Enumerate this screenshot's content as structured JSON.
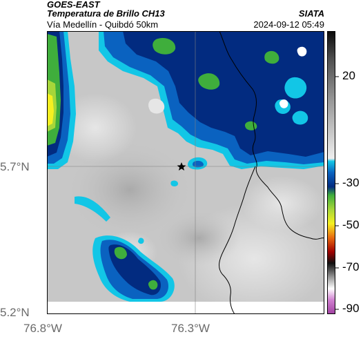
{
  "header": {
    "satellite": "GOES-EAST",
    "product": "Temperatura de Brillo CH13",
    "organization": "SIATA",
    "route": "Vía Medellín - Quibdó 50km",
    "datetime": "2024-09-12 05:49"
  },
  "map": {
    "latitude_labels": [
      "5.7°N",
      "5.2°N"
    ],
    "longitude_labels": [
      "76.8°W",
      "76.3°W"
    ],
    "marker": "star-icon",
    "colors": {
      "cold_cloud_dark": "#022b80",
      "cold_cloud_blue": "#0a62c0",
      "cold_cloud_cyan": "#12c6e6",
      "green": "#3fae3c",
      "yellow": "#f5f020",
      "warm_surface": "#c9c9c9"
    }
  },
  "colorbar": {
    "tick_labels": [
      "20",
      "-30",
      "-50",
      "-70",
      "-90"
    ],
    "colors": [
      "#0a0a0a",
      "#9a9a9a",
      "#e8e8e8",
      "#12c6e6",
      "#0a62c0",
      "#022b80",
      "#3fae3c",
      "#f5f020",
      "#e86a10",
      "#a00000",
      "#101010",
      "#9a9a9a",
      "#ffffff",
      "#b050b0"
    ]
  }
}
